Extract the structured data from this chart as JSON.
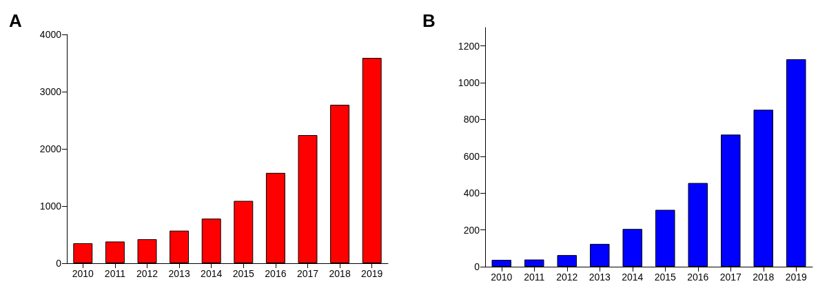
{
  "chart_data": [
    {
      "type": "bar",
      "title": "A",
      "categories": [
        "2010",
        "2011",
        "2012",
        "2013",
        "2014",
        "2015",
        "2016",
        "2017",
        "2018",
        "2019"
      ],
      "series": [
        {
          "color": "#ff0000",
          "values": [
            350,
            380,
            420,
            570,
            780,
            1090,
            1580,
            2240,
            2770,
            3590
          ]
        }
      ],
      "ylim": [
        0,
        4000
      ],
      "yticks": [
        0,
        1000,
        2000,
        3000,
        4000
      ],
      "grid": false
    },
    {
      "type": "bar",
      "title": "B",
      "categories": [
        "2010",
        "2011",
        "2012",
        "2013",
        "2014",
        "2015",
        "2016",
        "2017",
        "2018",
        "2019"
      ],
      "series": [
        {
          "color": "#0000ff",
          "values": [
            37,
            39,
            63,
            124,
            205,
            309,
            455,
            718,
            853,
            1128
          ]
        }
      ],
      "ylim": [
        0,
        1300
      ],
      "yticks": [
        0,
        200,
        400,
        600,
        800,
        1000,
        1200
      ],
      "grid": false
    }
  ]
}
